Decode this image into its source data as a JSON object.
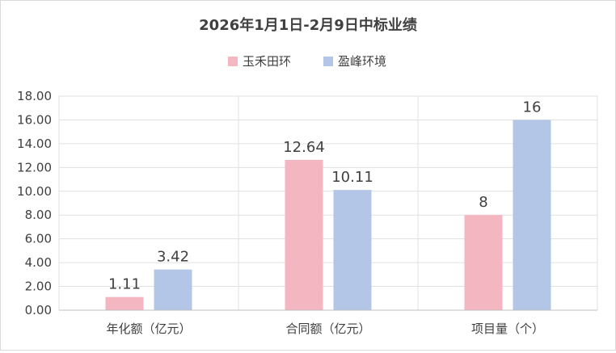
{
  "chart_data": {
    "type": "bar",
    "title": "2026年1月1日-2月9日中标业绩",
    "xlabel": "",
    "ylabel": "",
    "categories": [
      "年化额（亿元）",
      "合同额（亿元）",
      "项目量（个）"
    ],
    "series": [
      {
        "name": "玉禾田环",
        "color": "#f4b6c0",
        "values": [
          1.11,
          12.64,
          8
        ],
        "labels": [
          "1.11",
          "12.64",
          "8"
        ]
      },
      {
        "name": "盈峰环境",
        "color": "#b4c6e7",
        "values": [
          3.42,
          10.11,
          16
        ],
        "labels": [
          "3.42",
          "10.11",
          "16"
        ]
      }
    ],
    "ylim": [
      0,
      18
    ],
    "ytick_labels": [
      "0.00",
      "2.00",
      "4.00",
      "6.00",
      "8.00",
      "10.00",
      "12.00",
      "14.00",
      "16.00",
      "18.00"
    ],
    "grid": true,
    "legend_position": "top-center"
  }
}
